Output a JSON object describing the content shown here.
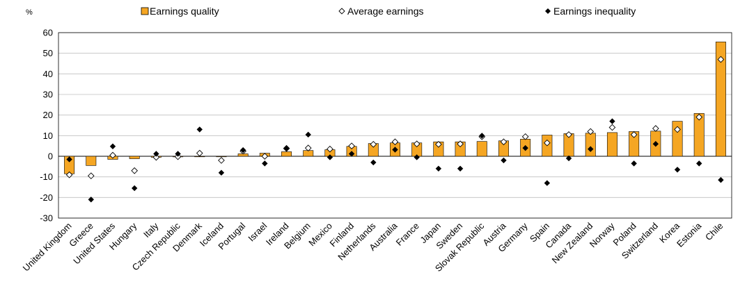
{
  "chart_data": {
    "type": "bar",
    "ylabel": "%",
    "ylim": [
      -30,
      60
    ],
    "yticks": [
      60,
      50,
      40,
      30,
      20,
      10,
      0,
      -10,
      -20,
      -30
    ],
    "legend_position": "top",
    "categories": [
      "United Kingdom",
      "Greece",
      "United States",
      "Hungary",
      "Italy",
      "Czech Republic",
      "Denmark",
      "Iceland",
      "Portugal",
      "Israel",
      "Ireland",
      "Belgium",
      "Mexico",
      "Finland",
      "Netherlands",
      "Australia",
      "France",
      "Japan",
      "Sweden",
      "Slovak Republic",
      "Austria",
      "Germany",
      "Spain",
      "Canada",
      "New Zealand",
      "Norway",
      "Poland",
      "Switzerland",
      "Korea",
      "Estonia",
      "Chile"
    ],
    "series": [
      {
        "name": "Earnings quality",
        "kind": "bar",
        "color": "#F5A623",
        "values": [
          -8.5,
          -4.5,
          -1.5,
          -1.2,
          -0.5,
          -0.3,
          -0.2,
          0.0,
          1.2,
          1.5,
          2.2,
          2.8,
          3.2,
          4.8,
          6.2,
          6.5,
          6.5,
          7.0,
          7.0,
          7.2,
          7.5,
          8.3,
          10.3,
          11.0,
          11.2,
          11.5,
          12.0,
          12.2,
          17.0,
          20.8,
          55.5
        ]
      },
      {
        "name": "Average earnings",
        "kind": "marker",
        "marker": "hollow-diamond",
        "values": [
          -9.0,
          -9.5,
          0.5,
          -7.0,
          -0.5,
          -0.2,
          1.5,
          -2.0,
          2.5,
          0.0,
          3.8,
          4.0,
          3.5,
          5.0,
          5.8,
          7.0,
          6.0,
          5.8,
          6.0,
          9.5,
          7.0,
          9.5,
          6.5,
          10.5,
          12.0,
          14.0,
          10.5,
          13.5,
          13.0,
          19.0,
          47.0
        ]
      },
      {
        "name": "Earnings inequality",
        "kind": "marker",
        "marker": "filled-diamond",
        "values": [
          -1.5,
          -21.0,
          4.8,
          -15.5,
          1.2,
          1.2,
          13.0,
          -8.0,
          3.0,
          -3.5,
          4.0,
          10.5,
          -0.5,
          1.2,
          -3.0,
          3.2,
          -0.5,
          -6.0,
          -6.0,
          10.0,
          -2.0,
          4.0,
          -13.0,
          -1.0,
          3.5,
          17.0,
          -3.5,
          6.0,
          -6.5,
          -3.5,
          -11.5
        ]
      }
    ]
  }
}
